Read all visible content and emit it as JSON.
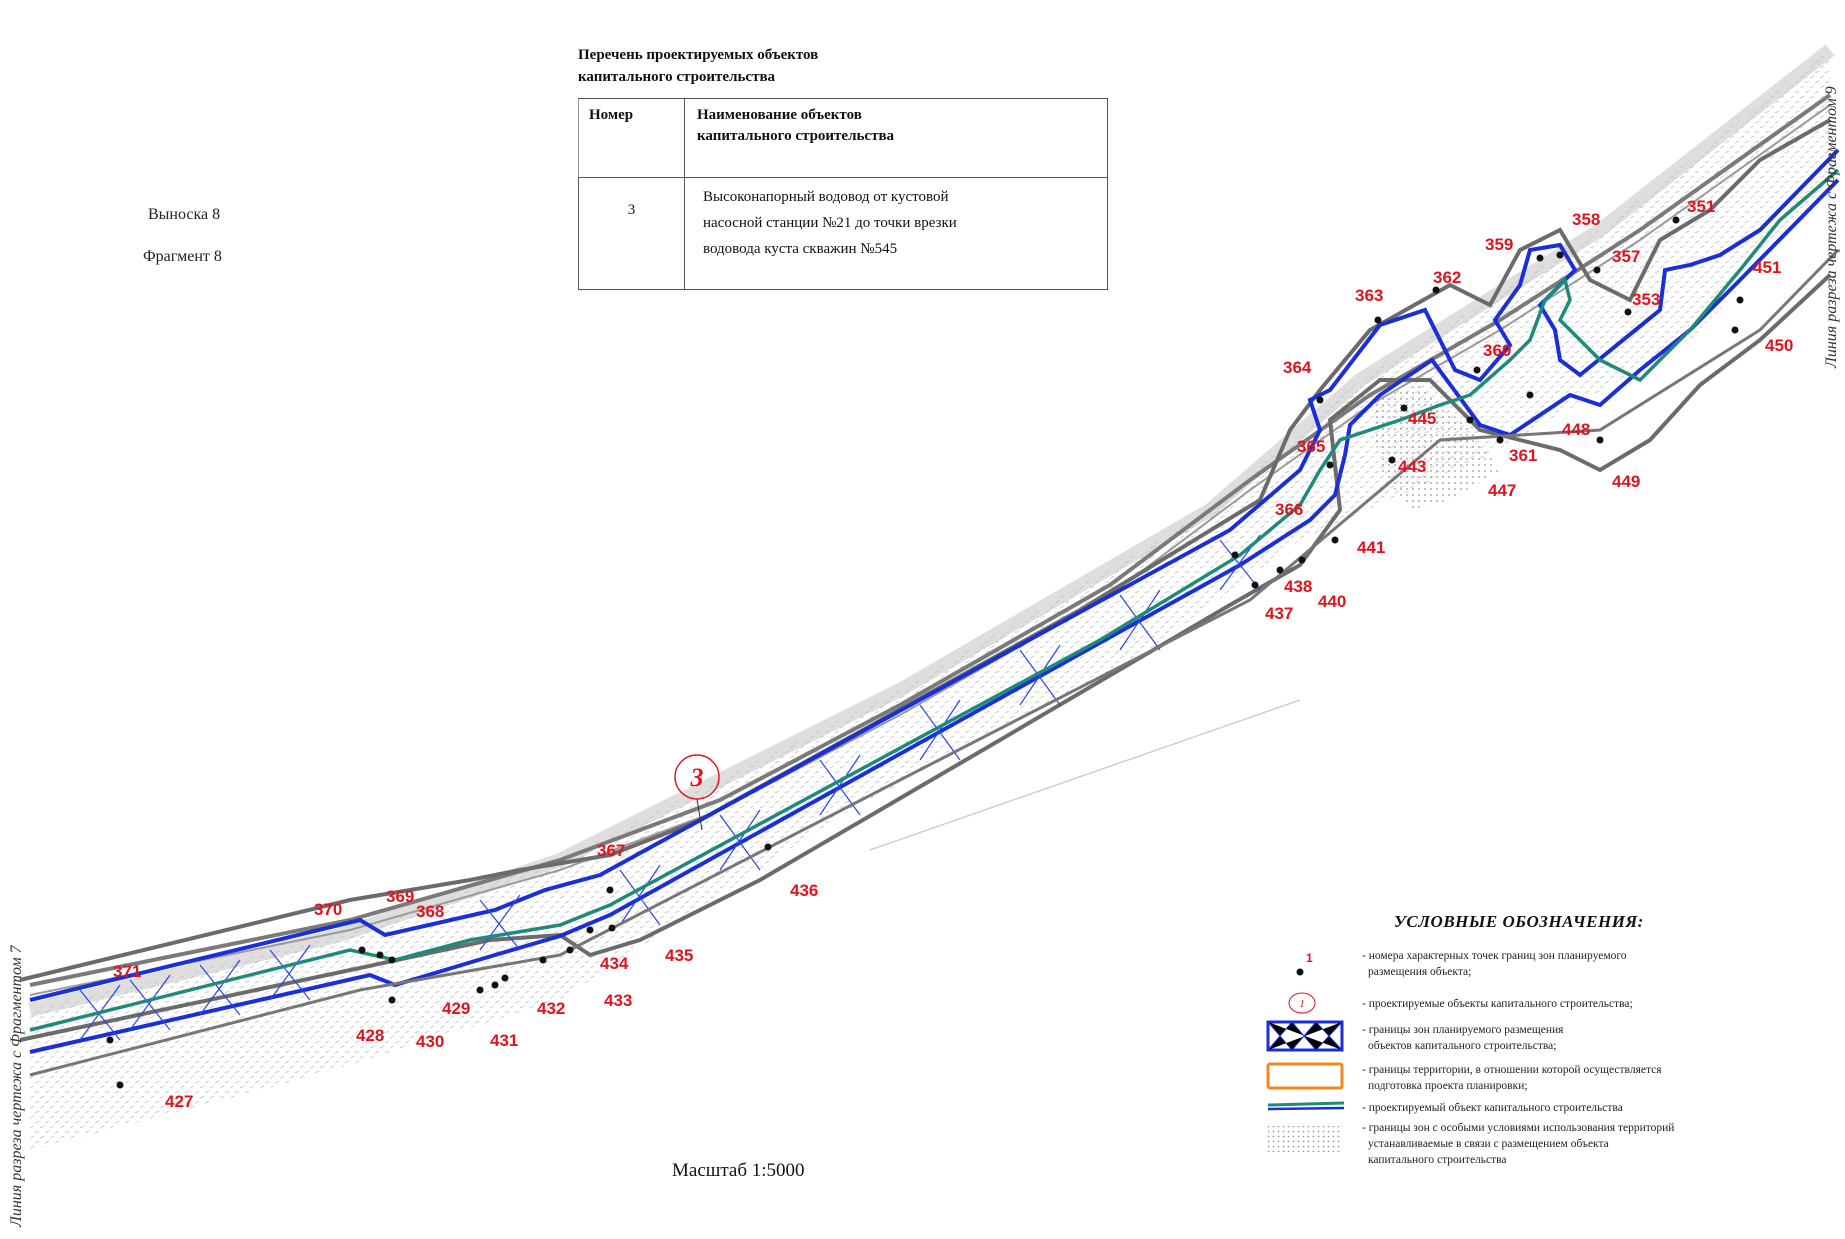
{
  "callout": {
    "line1": "Выноска 8",
    "line2": "Фрагмент 8"
  },
  "objects_table": {
    "title_line1": "Перечень проектируемых объектов",
    "title_line2": "капитального строительства",
    "col_number": "Номер",
    "col_name_line1": "Наименование объектов",
    "col_name_line2": "капитального строительства",
    "rows": [
      {
        "number": "3",
        "name_line1": "Высоконапорный водовод от кустовой",
        "name_line2": "насосной станции №21 до точки врезки",
        "name_line3": "водовода куста скважин №545"
      }
    ]
  },
  "cut_lines": {
    "left": "Линия разреза чертежа с Фрагментом 7",
    "right": "Линия разреза чертежа с Фрагментом 9"
  },
  "object_marker": "3",
  "point_labels": [
    "351",
    "353",
    "357",
    "358",
    "359",
    "360",
    "361",
    "362",
    "363",
    "364",
    "365",
    "366",
    "367",
    "368",
    "369",
    "370",
    "371",
    "427",
    "428",
    "429",
    "430",
    "431",
    "432",
    "433",
    "434",
    "435",
    "436",
    "437",
    "438",
    "440",
    "441",
    "443",
    "445",
    "447",
    "448",
    "449",
    "450",
    "451"
  ],
  "legend": {
    "title": "УСЛОВНЫЕ ОБОЗНАЧЕНИЯ:",
    "point_sample": "1",
    "object_sample": "1",
    "items": [
      {
        "icon": "boundary-point-icon",
        "line1": "- номера характерных точек границ зон планируемого",
        "line2": "размещения объекта;"
      },
      {
        "icon": "object-number-icon",
        "line1": "- проектируемые объекты капитального строительства;",
        "line2": ""
      },
      {
        "icon": "zone-boundary-icon",
        "line1": "- границы зон планируемого размещения",
        "line2": "объектов капитального строительства;"
      },
      {
        "icon": "territory-boundary-icon",
        "line1": "- границы территории, в отношении которой осуществляется",
        "line2": "подготовка проекта планировки;"
      },
      {
        "icon": "designed-object-line-icon",
        "line1": "- проектируемый объект капитального строительства",
        "line2": ""
      },
      {
        "icon": "special-zone-hatch-icon",
        "line1": "- границы зон с особыми условиями использования территорий",
        "line2": "устанавливаемые в связи с размещением объекта",
        "line3": "капитального строительства"
      }
    ],
    "colors": {
      "zone": "#1a2fd8",
      "territory": "#f08a1e",
      "pipeline": "#1f8a7a",
      "special_zone": "#555555"
    }
  },
  "scale": "Масштаб 1:5000"
}
